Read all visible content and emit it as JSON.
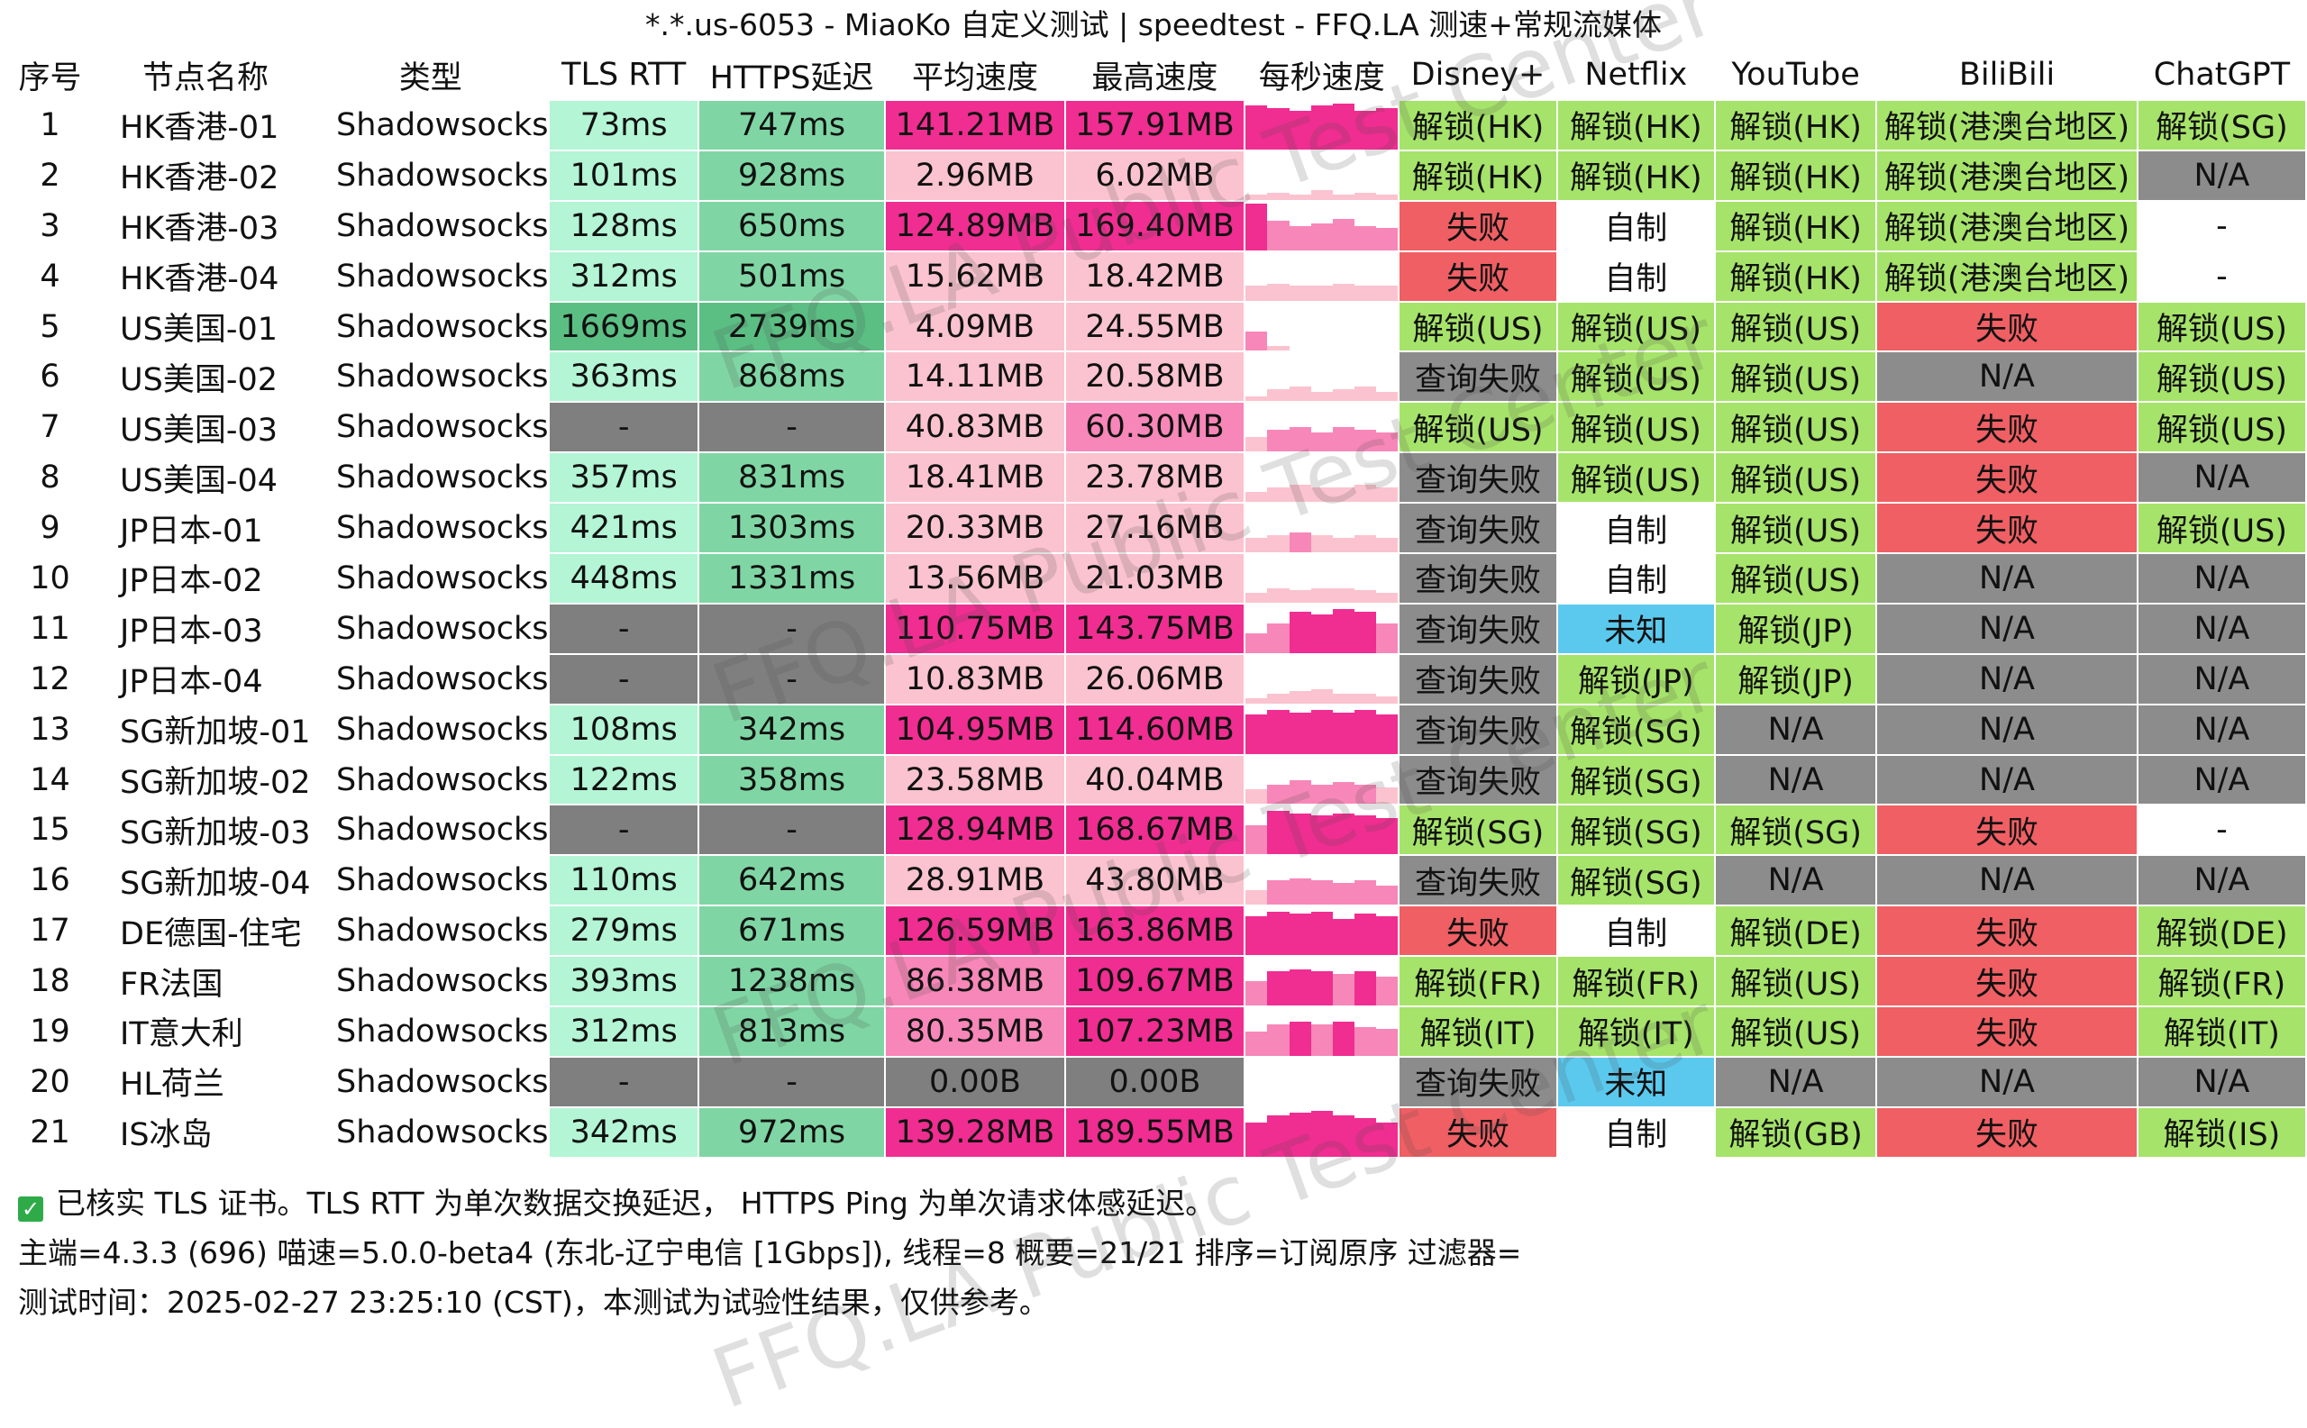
{
  "title": "*.*.us-6053 - MiaoKo 自定义测试 | speedtest - FFQ.LA 测速+常规流媒体",
  "columns": [
    "序号",
    "节点名称",
    "类型",
    "TLS RTT",
    "HTTPS延迟",
    "平均速度",
    "最高速度",
    "每秒速度",
    "Disney+",
    "Netflix",
    "YouTube",
    "BiliBili",
    "ChatGPT"
  ],
  "colors": {
    "rtt_green": "#b3f5d5",
    "rtt_green_mid": "#7fd6a4",
    "rtt_dark": "#5bbf84",
    "gray": "#7f7f7f",
    "speed_hot": "#f02d91",
    "speed_mid": "#f787b8",
    "speed_light": "#fbc3cf",
    "unlock": "#a6e36a",
    "fail": "#ef5f63",
    "na": "#8c8c8c",
    "unknown": "#5bc9ee",
    "self": "#ffffff"
  },
  "rows": [
    {
      "idx": "1",
      "name": "HK香港-01",
      "type": "Shadowsocks",
      "tls": "73ms",
      "https": "747ms",
      "avg": "141.21MB",
      "max": "157.91MB",
      "bars": [
        0.9,
        0.85,
        0.8,
        0.9,
        0.95,
        0.8,
        0.85
      ],
      "disney": "解锁(HK)",
      "netflix": "解锁(HK)",
      "youtube": "解锁(HK)",
      "bili": "解锁(港澳台地区)",
      "gpt": "解锁(SG)"
    },
    {
      "idx": "2",
      "name": "HK香港-02",
      "type": "Shadowsocks",
      "tls": "101ms",
      "https": "928ms",
      "avg": "2.96MB",
      "max": "6.02MB",
      "bars": [
        0.1,
        0.15,
        0.1,
        0.2,
        0.1,
        0.15,
        0.1
      ],
      "disney": "解锁(HK)",
      "netflix": "解锁(HK)",
      "youtube": "解锁(HK)",
      "bili": "解锁(港澳台地区)",
      "gpt": "N/A"
    },
    {
      "idx": "3",
      "name": "HK香港-03",
      "type": "Shadowsocks",
      "tls": "128ms",
      "https": "650ms",
      "avg": "124.89MB",
      "max": "169.40MB",
      "bars": [
        0.95,
        0.6,
        0.5,
        0.55,
        0.65,
        0.5,
        0.45
      ],
      "disney": "失败",
      "netflix": "自制",
      "youtube": "解锁(HK)",
      "bili": "解锁(港澳台地区)",
      "gpt": "-"
    },
    {
      "idx": "4",
      "name": "HK香港-04",
      "type": "Shadowsocks",
      "tls": "312ms",
      "https": "501ms",
      "avg": "15.62MB",
      "max": "18.42MB",
      "bars": [
        0.3,
        0.35,
        0.3,
        0.3,
        0.35,
        0.3,
        0.3
      ],
      "disney": "失败",
      "netflix": "自制",
      "youtube": "解锁(HK)",
      "bili": "解锁(港澳台地区)",
      "gpt": "-"
    },
    {
      "idx": "5",
      "name": "US美国-01",
      "type": "Shadowsocks",
      "tls": "1669ms",
      "https": "2739ms",
      "avg": "4.09MB",
      "max": "24.55MB",
      "bars": [
        0.4,
        0.1,
        0.0,
        0.0,
        0.0,
        0.0,
        0.0
      ],
      "disney": "解锁(US)",
      "netflix": "解锁(US)",
      "youtube": "解锁(US)",
      "bili": "失败",
      "gpt": "解锁(US)"
    },
    {
      "idx": "6",
      "name": "US美国-02",
      "type": "Shadowsocks",
      "tls": "363ms",
      "https": "868ms",
      "avg": "14.11MB",
      "max": "20.58MB",
      "bars": [
        0.1,
        0.25,
        0.3,
        0.2,
        0.25,
        0.3,
        0.2
      ],
      "disney": "查询失败",
      "netflix": "解锁(US)",
      "youtube": "解锁(US)",
      "bili": "N/A",
      "gpt": "解锁(US)"
    },
    {
      "idx": "7",
      "name": "US美国-03",
      "type": "Shadowsocks",
      "tls": "-",
      "https": "-",
      "avg": "40.83MB",
      "max": "60.30MB",
      "bars": [
        0.3,
        0.45,
        0.5,
        0.4,
        0.5,
        0.45,
        0.4
      ],
      "disney": "解锁(US)",
      "netflix": "解锁(US)",
      "youtube": "解锁(US)",
      "bili": "失败",
      "gpt": "解锁(US)"
    },
    {
      "idx": "8",
      "name": "US美国-04",
      "type": "Shadowsocks",
      "tls": "357ms",
      "https": "831ms",
      "avg": "18.41MB",
      "max": "23.78MB",
      "bars": [
        0.2,
        0.3,
        0.35,
        0.3,
        0.3,
        0.35,
        0.3
      ],
      "disney": "查询失败",
      "netflix": "解锁(US)",
      "youtube": "解锁(US)",
      "bili": "失败",
      "gpt": "N/A"
    },
    {
      "idx": "9",
      "name": "JP日本-01",
      "type": "Shadowsocks",
      "tls": "421ms",
      "https": "1303ms",
      "avg": "20.33MB",
      "max": "27.16MB",
      "bars": [
        0.3,
        0.35,
        0.4,
        0.35,
        0.3,
        0.35,
        0.3
      ],
      "disney": "查询失败",
      "netflix": "自制",
      "youtube": "解锁(US)",
      "bili": "失败",
      "gpt": "解锁(US)"
    },
    {
      "idx": "10",
      "name": "JP日本-02",
      "type": "Shadowsocks",
      "tls": "448ms",
      "https": "1331ms",
      "avg": "13.56MB",
      "max": "21.03MB",
      "bars": [
        0.2,
        0.3,
        0.25,
        0.3,
        0.3,
        0.25,
        0.2
      ],
      "disney": "查询失败",
      "netflix": "自制",
      "youtube": "解锁(US)",
      "bili": "N/A",
      "gpt": "N/A"
    },
    {
      "idx": "11",
      "name": "JP日本-03",
      "type": "Shadowsocks",
      "tls": "-",
      "https": "-",
      "avg": "110.75MB",
      "max": "143.75MB",
      "bars": [
        0.4,
        0.6,
        0.85,
        0.8,
        0.9,
        0.85,
        0.6
      ],
      "disney": "查询失败",
      "netflix": "未知",
      "youtube": "解锁(JP)",
      "bili": "N/A",
      "gpt": "N/A"
    },
    {
      "idx": "12",
      "name": "JP日本-04",
      "type": "Shadowsocks",
      "tls": "-",
      "https": "-",
      "avg": "10.83MB",
      "max": "26.06MB",
      "bars": [
        0.1,
        0.2,
        0.25,
        0.3,
        0.2,
        0.2,
        0.15
      ],
      "disney": "查询失败",
      "netflix": "解锁(JP)",
      "youtube": "解锁(JP)",
      "bili": "N/A",
      "gpt": "N/A"
    },
    {
      "idx": "13",
      "name": "SG新加坡-01",
      "type": "Shadowsocks",
      "tls": "108ms",
      "https": "342ms",
      "avg": "104.95MB",
      "max": "114.60MB",
      "bars": [
        0.8,
        0.9,
        0.85,
        0.9,
        0.85,
        0.9,
        0.8
      ],
      "disney": "查询失败",
      "netflix": "解锁(SG)",
      "youtube": "N/A",
      "bili": "N/A",
      "gpt": "N/A"
    },
    {
      "idx": "14",
      "name": "SG新加坡-02",
      "type": "Shadowsocks",
      "tls": "122ms",
      "https": "358ms",
      "avg": "23.58MB",
      "max": "40.04MB",
      "bars": [
        0.3,
        0.4,
        0.5,
        0.4,
        0.45,
        0.4,
        0.35
      ],
      "disney": "查询失败",
      "netflix": "解锁(SG)",
      "youtube": "N/A",
      "bili": "N/A",
      "gpt": "N/A"
    },
    {
      "idx": "15",
      "name": "SG新加坡-03",
      "type": "Shadowsocks",
      "tls": "-",
      "https": "-",
      "avg": "128.94MB",
      "max": "168.67MB",
      "bars": [
        0.6,
        0.9,
        0.85,
        0.8,
        0.85,
        0.8,
        0.75
      ],
      "disney": "解锁(SG)",
      "netflix": "解锁(SG)",
      "youtube": "解锁(SG)",
      "bili": "失败",
      "gpt": "-"
    },
    {
      "idx": "16",
      "name": "SG新加坡-04",
      "type": "Shadowsocks",
      "tls": "110ms",
      "https": "642ms",
      "avg": "28.91MB",
      "max": "43.80MB",
      "bars": [
        0.3,
        0.5,
        0.55,
        0.5,
        0.45,
        0.5,
        0.4
      ],
      "disney": "查询失败",
      "netflix": "解锁(SG)",
      "youtube": "N/A",
      "bili": "N/A",
      "gpt": "N/A"
    },
    {
      "idx": "17",
      "name": "DE德国-住宅",
      "type": "Shadowsocks",
      "tls": "279ms",
      "https": "671ms",
      "avg": "126.59MB",
      "max": "163.86MB",
      "bars": [
        0.8,
        0.9,
        0.85,
        0.9,
        0.75,
        0.85,
        0.8
      ],
      "disney": "失败",
      "netflix": "自制",
      "youtube": "解锁(DE)",
      "bili": "失败",
      "gpt": "解锁(DE)"
    },
    {
      "idx": "18",
      "name": "FR法国",
      "type": "Shadowsocks",
      "tls": "393ms",
      "https": "1238ms",
      "avg": "86.38MB",
      "max": "109.67MB",
      "bars": [
        0.5,
        0.7,
        0.75,
        0.7,
        0.65,
        0.7,
        0.6
      ],
      "disney": "解锁(FR)",
      "netflix": "解锁(FR)",
      "youtube": "解锁(US)",
      "bili": "失败",
      "gpt": "解锁(FR)"
    },
    {
      "idx": "19",
      "name": "IT意大利",
      "type": "Shadowsocks",
      "tls": "312ms",
      "https": "813ms",
      "avg": "80.35MB",
      "max": "107.23MB",
      "bars": [
        0.5,
        0.65,
        0.7,
        0.65,
        0.7,
        0.6,
        0.55
      ],
      "disney": "解锁(IT)",
      "netflix": "解锁(IT)",
      "youtube": "解锁(US)",
      "bili": "失败",
      "gpt": "解锁(IT)"
    },
    {
      "idx": "20",
      "name": "HL荷兰",
      "type": "Shadowsocks",
      "tls": "-",
      "https": "-",
      "avg": "0.00B",
      "max": "0.00B",
      "bars": [
        0,
        0,
        0,
        0,
        0,
        0,
        0
      ],
      "disney": "查询失败",
      "netflix": "未知",
      "youtube": "N/A",
      "bili": "N/A",
      "gpt": "N/A"
    },
    {
      "idx": "21",
      "name": "IS冰岛",
      "type": "Shadowsocks",
      "tls": "342ms",
      "https": "972ms",
      "avg": "139.28MB",
      "max": "189.55MB",
      "bars": [
        0.7,
        0.85,
        0.9,
        0.95,
        0.85,
        0.8,
        0.7
      ],
      "disney": "失败",
      "netflix": "自制",
      "youtube": "解锁(GB)",
      "bili": "失败",
      "gpt": "解锁(IS)"
    }
  ],
  "footer": {
    "check_icon": "check-icon",
    "line1": "已核实 TLS 证书。TLS RTT 为单次数据交换延迟， HTTPS Ping 为单次请求体感延迟。",
    "line2": "主端=4.3.3 (696) 喵速=5.0.0-beta4 (东北-辽宁电信 [1Gbps]), 线程=8 概要=21/21 排序=订阅原序 过滤器=",
    "line3": "测试时间：2025-02-27 23:25:10 (CST)，本测试为试验性结果，仅供参考。"
  },
  "watermark": "FFQ.LA Public Test Center"
}
